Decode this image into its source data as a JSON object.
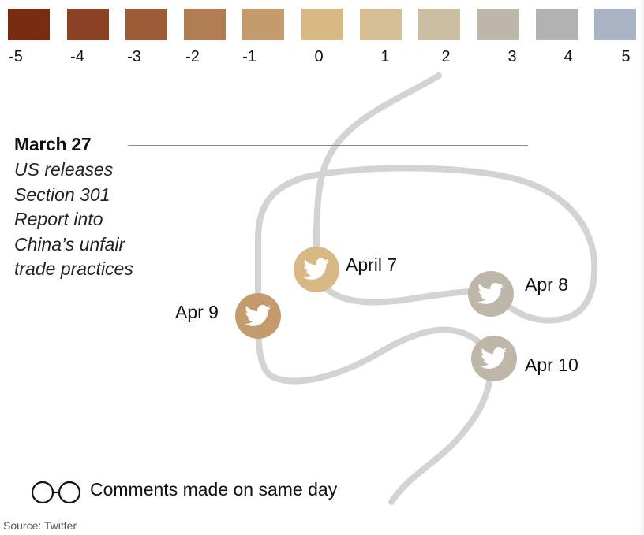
{
  "scale": {
    "items": [
      {
        "label": "-5",
        "color": "#7a2c12"
      },
      {
        "label": "-4",
        "color": "#8c4125"
      },
      {
        "label": "-3",
        "color": "#9d5b37"
      },
      {
        "label": "-2",
        "color": "#b07c52"
      },
      {
        "label": "-1",
        "color": "#c49b6d"
      },
      {
        "label": "0",
        "color": "#d8b985"
      },
      {
        "label": "1",
        "color": "#d6bf95"
      },
      {
        "label": "2",
        "color": "#cbbda1"
      },
      {
        "label": "3",
        "color": "#bdb6a9"
      },
      {
        "label": "4",
        "color": "#b2b2b2"
      },
      {
        "label": "5",
        "color": "#a9b3c3"
      }
    ]
  },
  "event": {
    "date": "March 27",
    "lines": [
      "US releases",
      "Section 301",
      "Report into",
      "China’s unfair",
      "trade practices"
    ]
  },
  "stream_color": "#d3d3d3",
  "tweets": [
    {
      "label": "April 7",
      "color": "#d8b985",
      "icon": "twitter-bird-icon"
    },
    {
      "label": "Apr 8",
      "color": "#bdb6a9",
      "icon": "twitter-bird-icon"
    },
    {
      "label": "Apr 9",
      "color": "#c49b6d",
      "icon": "twitter-bird-icon"
    },
    {
      "label": "Apr 10",
      "color": "#bdb6a9",
      "icon": "twitter-bird-icon"
    }
  ],
  "legend": {
    "text": "Comments made on same day",
    "icon": "linked-circles-icon"
  },
  "source": "Source: Twitter"
}
